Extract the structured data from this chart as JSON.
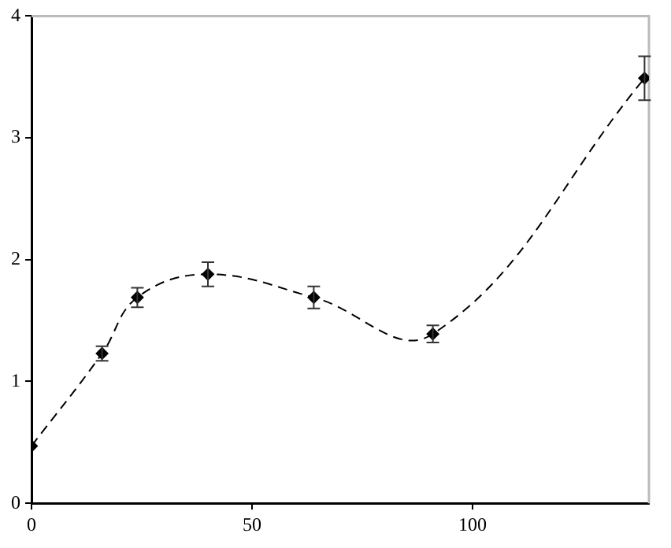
{
  "chart_data": {
    "type": "line",
    "x": [
      0,
      16,
      24,
      40,
      64,
      91,
      139
    ],
    "series": [
      {
        "color": "#000000",
        "values": [
          0.47,
          1.23,
          1.69,
          1.88,
          1.69,
          1.39,
          3.49
        ],
        "errors": [
          null,
          0.06,
          0.08,
          0.1,
          0.09,
          0.07,
          0.18
        ]
      }
    ],
    "xlim": [
      0,
      140
    ],
    "xticks": [
      0,
      50,
      100
    ],
    "ylim": [
      0,
      4
    ],
    "yticks": [
      0,
      1,
      2,
      3,
      4
    ],
    "grid": false,
    "legend": false,
    "marker": "diamond",
    "line_style": "dashed"
  }
}
